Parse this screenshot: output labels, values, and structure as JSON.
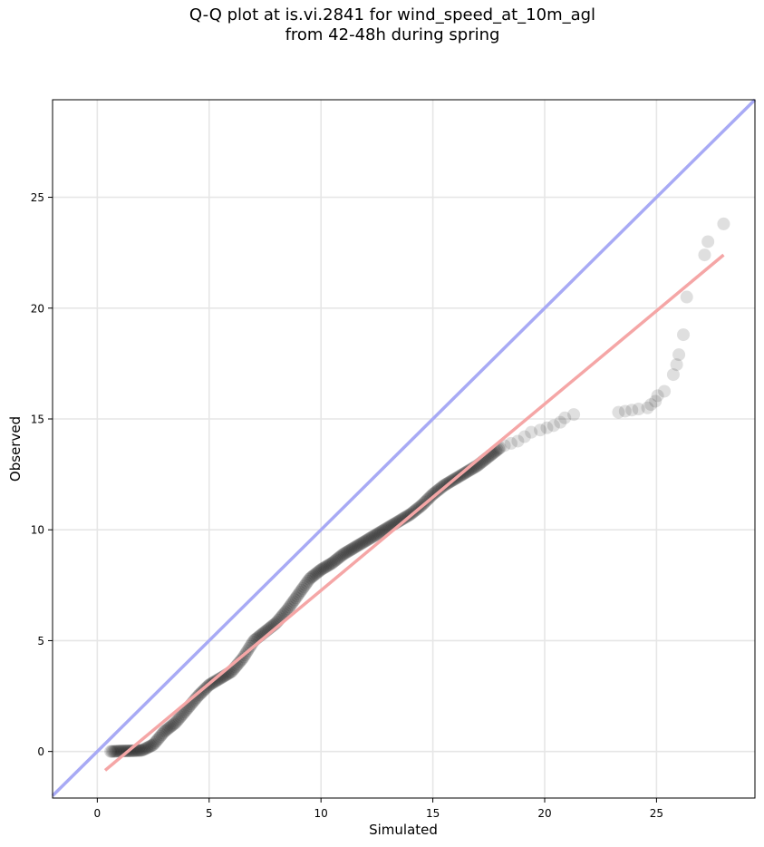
{
  "chart_data": {
    "type": "scatter",
    "title_line1": "Q-Q plot at is.vi.2841 for wind_speed_at_10m_agl",
    "title_line2": "from 42-48h during spring",
    "xlabel": "Simulated",
    "ylabel": "Observed",
    "xlim": [
      -2.0,
      29.4
    ],
    "ylim": [
      -2.1,
      29.4
    ],
    "xticks": [
      0,
      5,
      10,
      15,
      20,
      25
    ],
    "yticks": [
      0,
      5,
      10,
      15,
      20,
      25
    ],
    "grid": true,
    "colors": {
      "identity_line": "#a8aaf5",
      "fit_line": "#f5a6a6",
      "points": "#1a1a1a"
    },
    "identity_line": {
      "x": [
        -2.0,
        29.4
      ],
      "y": [
        -2.0,
        29.4
      ]
    },
    "fit_line": {
      "x": [
        0.35,
        28.0
      ],
      "y": [
        -0.85,
        22.4
      ]
    },
    "curve_knots": {
      "x": [
        0.6,
        1.0,
        1.5,
        2.0,
        2.5,
        3.0,
        3.5,
        4.0,
        4.5,
        5.0,
        5.5,
        6.0,
        6.5,
        7.0,
        7.5,
        8.0,
        8.5,
        9.0,
        9.5,
        10.0,
        10.5,
        11.0,
        11.5,
        12.0,
        12.5,
        13.0,
        13.5,
        14.0,
        14.5,
        15.0,
        15.5,
        16.0,
        16.5,
        17.0,
        17.5,
        18.0
      ],
      "y": [
        0.0,
        0.02,
        0.03,
        0.05,
        0.3,
        0.9,
        1.3,
        1.9,
        2.5,
        3.0,
        3.3,
        3.6,
        4.2,
        5.0,
        5.4,
        5.8,
        6.4,
        7.1,
        7.8,
        8.2,
        8.5,
        8.9,
        9.2,
        9.5,
        9.8,
        10.1,
        10.4,
        10.7,
        11.1,
        11.6,
        12.0,
        12.3,
        12.6,
        12.9,
        13.3,
        13.7
      ]
    },
    "tail_points": {
      "x": [
        18.2,
        18.5,
        18.8,
        19.1,
        19.4,
        19.8,
        20.1,
        20.4,
        20.7,
        20.9,
        21.3,
        23.3,
        23.6,
        23.9,
        24.2,
        24.6,
        24.75,
        24.95,
        25.05,
        25.35,
        25.75,
        25.9,
        26.0,
        26.2,
        26.35,
        27.15,
        27.3,
        28.0
      ],
      "y": [
        13.8,
        13.9,
        14.0,
        14.2,
        14.4,
        14.5,
        14.6,
        14.7,
        14.85,
        15.05,
        15.2,
        15.3,
        15.35,
        15.4,
        15.45,
        15.5,
        15.65,
        15.8,
        16.05,
        16.25,
        17.0,
        17.45,
        17.9,
        18.8,
        20.5,
        22.4,
        23.0,
        23.8
      ]
    }
  }
}
